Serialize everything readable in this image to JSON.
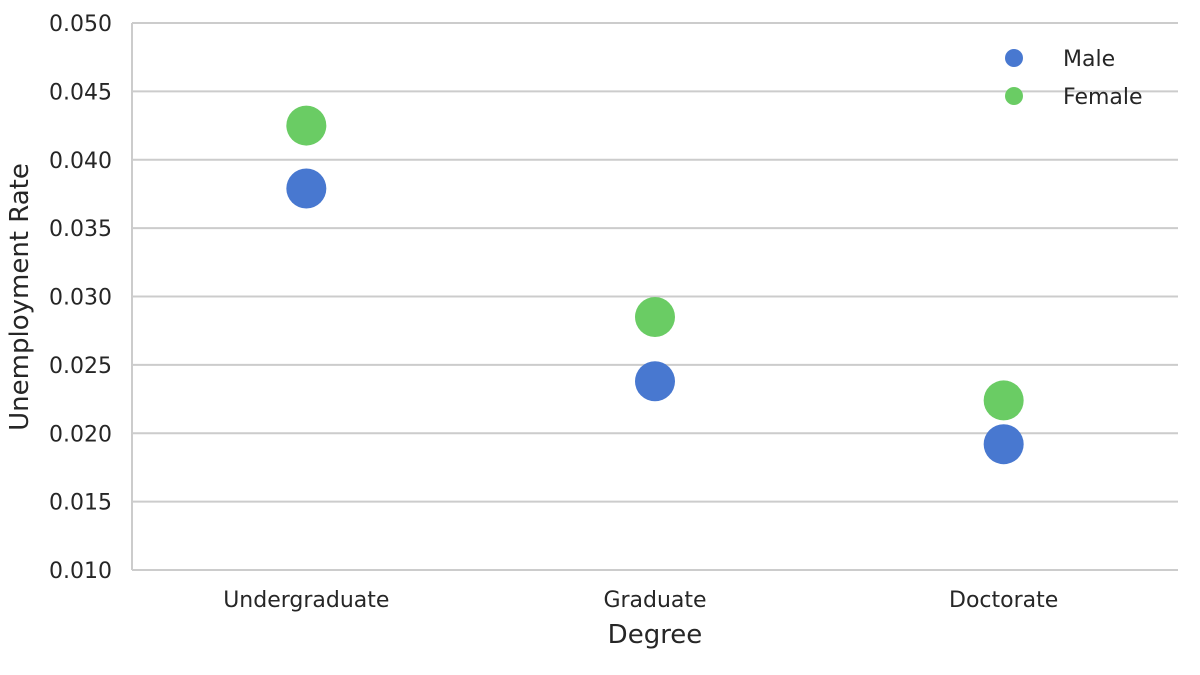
{
  "chart_data": {
    "type": "scatter",
    "categories": [
      "Undergraduate",
      "Graduate",
      "Doctorate"
    ],
    "series": [
      {
        "name": "Male",
        "color": "#4878d0",
        "values": [
          0.0379,
          0.0238,
          0.0192
        ]
      },
      {
        "name": "Female",
        "color": "#6acc64",
        "values": [
          0.0425,
          0.0285,
          0.0224
        ]
      }
    ],
    "xlabel": "Degree",
    "ylabel": "Unemployment Rate",
    "ylim": [
      0.01,
      0.05
    ],
    "yticks": [
      "0.010",
      "0.015",
      "0.020",
      "0.025",
      "0.030",
      "0.035",
      "0.040",
      "0.045",
      "0.050"
    ],
    "grid": true,
    "legend": "top-right"
  }
}
